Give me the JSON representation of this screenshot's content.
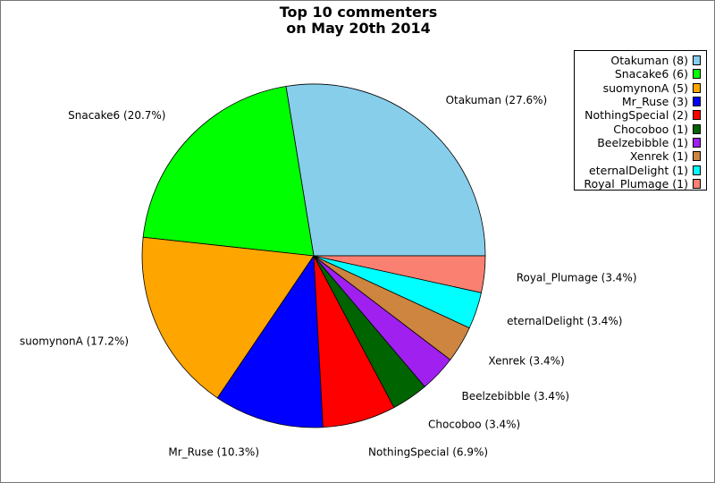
{
  "chart_data": {
    "type": "pie",
    "title_lines": [
      "Top 10 commenters",
      "on May 20th 2014"
    ],
    "legend_placement": "top-right",
    "slices": [
      {
        "name": "Otakuman",
        "value": 8,
        "percent_label": "27.6%",
        "color": "#87ceeb"
      },
      {
        "name": "Snacake6",
        "value": 6,
        "percent_label": "20.7%",
        "color": "#00ff00"
      },
      {
        "name": "suomynonA",
        "value": 5,
        "percent_label": "17.2%",
        "color": "#ffa500"
      },
      {
        "name": "Mr_Ruse",
        "value": 3,
        "percent_label": "10.3%",
        "color": "#0000ff"
      },
      {
        "name": "NothingSpecial",
        "value": 2,
        "percent_label": "6.9%",
        "color": "#ff0000"
      },
      {
        "name": "Chocoboo",
        "value": 1,
        "percent_label": "3.4%",
        "color": "#006400"
      },
      {
        "name": "Beelzebibble",
        "value": 1,
        "percent_label": "3.4%",
        "color": "#a020f0"
      },
      {
        "name": "Xenrek",
        "value": 1,
        "percent_label": "3.4%",
        "color": "#cd853f"
      },
      {
        "name": "eternalDelight",
        "value": 1,
        "percent_label": "3.4%",
        "color": "#00ffff"
      },
      {
        "name": "Royal_Plumage",
        "value": 1,
        "percent_label": "3.4%",
        "color": "#fa8072"
      }
    ]
  }
}
